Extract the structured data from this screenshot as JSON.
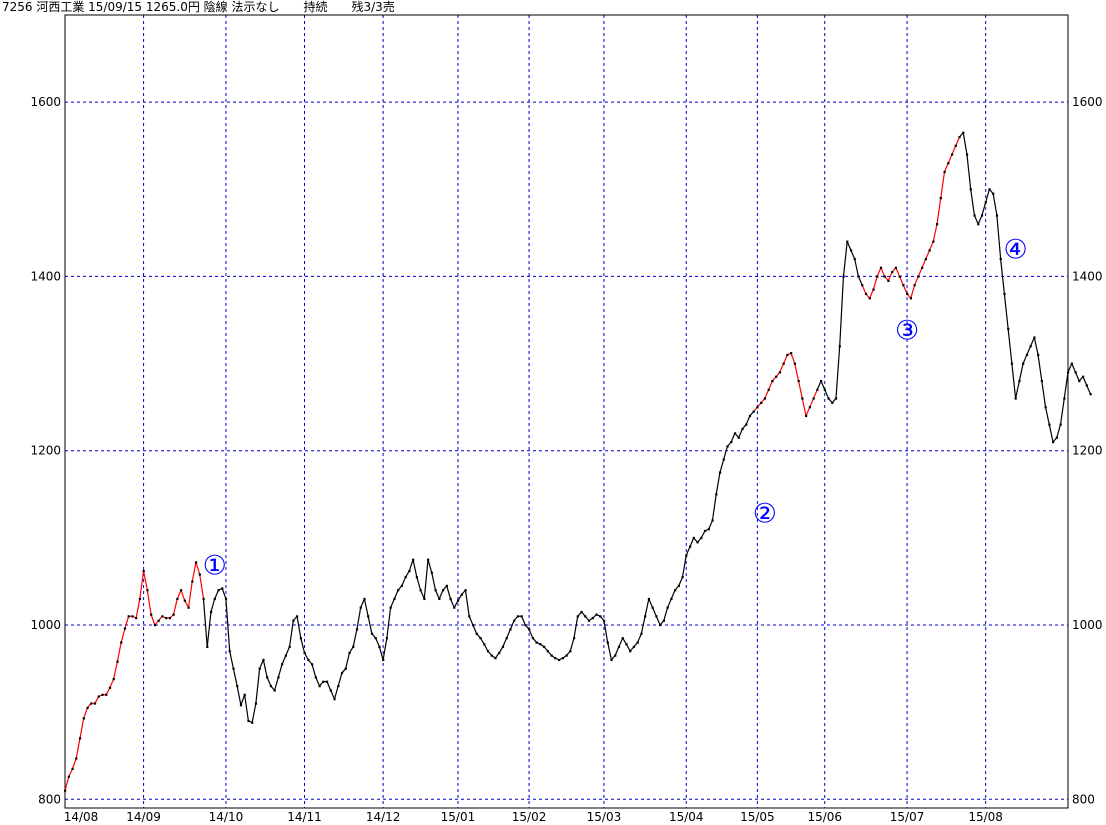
{
  "header": {
    "text": "7256 河西工業 15/09/15 1265.0円 陰線 法示なし　　持続　　残3/3売"
  },
  "chart_data": {
    "type": "line",
    "title": "",
    "xlabel": "",
    "ylabel": "",
    "ylim": [
      790,
      1700
    ],
    "y_ticks": [
      800,
      1000,
      1200,
      1400,
      1600
    ],
    "x_ticks": [
      {
        "label": "14/08",
        "index": 0
      },
      {
        "label": "14/09",
        "index": 21
      },
      {
        "label": "14/10",
        "index": 43
      },
      {
        "label": "14/11",
        "index": 64
      },
      {
        "label": "14/12",
        "index": 85
      },
      {
        "label": "15/01",
        "index": 105
      },
      {
        "label": "15/02",
        "index": 124
      },
      {
        "label": "15/03",
        "index": 144
      },
      {
        "label": "15/04",
        "index": 166
      },
      {
        "label": "15/05",
        "index": 185
      },
      {
        "label": "15/06",
        "index": 203
      },
      {
        "label": "15/07",
        "index": 225
      },
      {
        "label": "15/08",
        "index": 246
      }
    ],
    "grid": true,
    "x_range": [
      0,
      268
    ],
    "series": [
      {
        "values": [
          810,
          826,
          835,
          847,
          870,
          893,
          905,
          910,
          910,
          918,
          920,
          920,
          928,
          938,
          958,
          980,
          996,
          1010,
          1010,
          1008,
          1030,
          1062,
          1040,
          1012,
          1000,
          1005,
          1010,
          1008,
          1008,
          1012,
          1030,
          1040,
          1028,
          1020,
          1050,
          1072,
          1058,
          1030,
          975,
          1015,
          1030,
          1040,
          1042,
          1030,
          970,
          950,
          930,
          908,
          920,
          890,
          888,
          910,
          950,
          960,
          940,
          930,
          925,
          940,
          955,
          965,
          975,
          1005,
          1010,
          985,
          968,
          960,
          955,
          940,
          930,
          935,
          935,
          925,
          915,
          930,
          945,
          950,
          968,
          975,
          995,
          1020,
          1030,
          1010,
          990,
          985,
          975,
          960,
          985,
          1020,
          1030,
          1040,
          1045,
          1055,
          1062,
          1075,
          1055,
          1040,
          1030,
          1075,
          1060,
          1040,
          1030,
          1040,
          1045,
          1030,
          1020,
          1028,
          1035,
          1040,
          1010,
          1000,
          990,
          985,
          978,
          970,
          965,
          962,
          968,
          975,
          985,
          995,
          1005,
          1010,
          1010,
          1000,
          995,
          985,
          980,
          978,
          975,
          970,
          965,
          962,
          960,
          962,
          965,
          970,
          985,
          1010,
          1015,
          1010,
          1005,
          1008,
          1012,
          1010,
          1005,
          980,
          960,
          965,
          975,
          985,
          978,
          970,
          975,
          980,
          990,
          1010,
          1030,
          1020,
          1010,
          1000,
          1005,
          1020,
          1030,
          1040,
          1045,
          1055,
          1080,
          1090,
          1100,
          1095,
          1100,
          1108,
          1110,
          1120,
          1150,
          1175,
          1190,
          1205,
          1210,
          1220,
          1215,
          1225,
          1230,
          1240,
          1245,
          1250,
          1255,
          1260,
          1270,
          1280,
          1285,
          1290,
          1300,
          1310,
          1312,
          1300,
          1280,
          1260,
          1240,
          1250,
          1260,
          1270,
          1280,
          1270,
          1260,
          1255,
          1260,
          1320,
          1400,
          1440,
          1430,
          1420,
          1400,
          1390,
          1380,
          1375,
          1385,
          1400,
          1410,
          1400,
          1395,
          1405,
          1410,
          1400,
          1390,
          1380,
          1375,
          1390,
          1400,
          1410,
          1420,
          1430,
          1440,
          1460,
          1490,
          1520,
          1530,
          1540,
          1550,
          1560,
          1565,
          1540,
          1500,
          1470,
          1460,
          1470,
          1485,
          1500,
          1495,
          1470,
          1420,
          1380,
          1340,
          1300,
          1260,
          1280,
          1300,
          1310,
          1320,
          1330,
          1310,
          1280,
          1250,
          1230,
          1210,
          1215,
          1230,
          1260,
          1290,
          1300,
          1290,
          1280,
          1285,
          1275,
          1265
        ]
      }
    ],
    "red_segments": [
      [
        0,
        37
      ],
      [
        184,
        201
      ],
      [
        213,
        239
      ]
    ],
    "annotations": [
      {
        "label": "①",
        "index": 40,
        "value": 1068
      },
      {
        "label": "②",
        "index": 187,
        "value": 1128
      },
      {
        "label": "③",
        "index": 225,
        "value": 1338
      },
      {
        "label": "④",
        "index": 254,
        "value": 1431
      }
    ]
  }
}
